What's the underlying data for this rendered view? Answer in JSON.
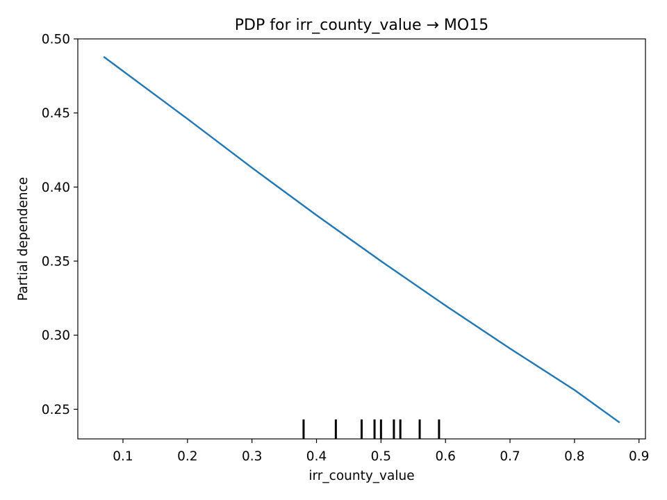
{
  "chart_data": {
    "type": "line",
    "title": "PDP for irr_county_value → MO15",
    "xlabel": "irr_county_value",
    "ylabel": "Partial dependence",
    "xlim": [
      0.03,
      0.91
    ],
    "ylim": [
      0.23,
      0.5
    ],
    "x_ticks": [
      0.1,
      0.2,
      0.3,
      0.4,
      0.5,
      0.6,
      0.7,
      0.8,
      0.9
    ],
    "x_tick_labels": [
      "0.1",
      "0.2",
      "0.3",
      "0.4",
      "0.5",
      "0.6",
      "0.7",
      "0.8",
      "0.9"
    ],
    "y_ticks": [
      0.25,
      0.3,
      0.35,
      0.4,
      0.45,
      0.5
    ],
    "y_tick_labels": [
      "0.25",
      "0.30",
      "0.35",
      "0.40",
      "0.45",
      "0.50"
    ],
    "grid": false,
    "line_color": "#1f77b4",
    "rug_color": "#000000",
    "series": [
      {
        "x": [
          0.07,
          0.2,
          0.3,
          0.4,
          0.5,
          0.6,
          0.7,
          0.8,
          0.87
        ],
        "y": [
          0.488,
          0.446,
          0.413,
          0.381,
          0.35,
          0.32,
          0.291,
          0.263,
          0.241
        ]
      }
    ],
    "rug": [
      0.38,
      0.43,
      0.47,
      0.49,
      0.5,
      0.52,
      0.53,
      0.56,
      0.59
    ]
  }
}
